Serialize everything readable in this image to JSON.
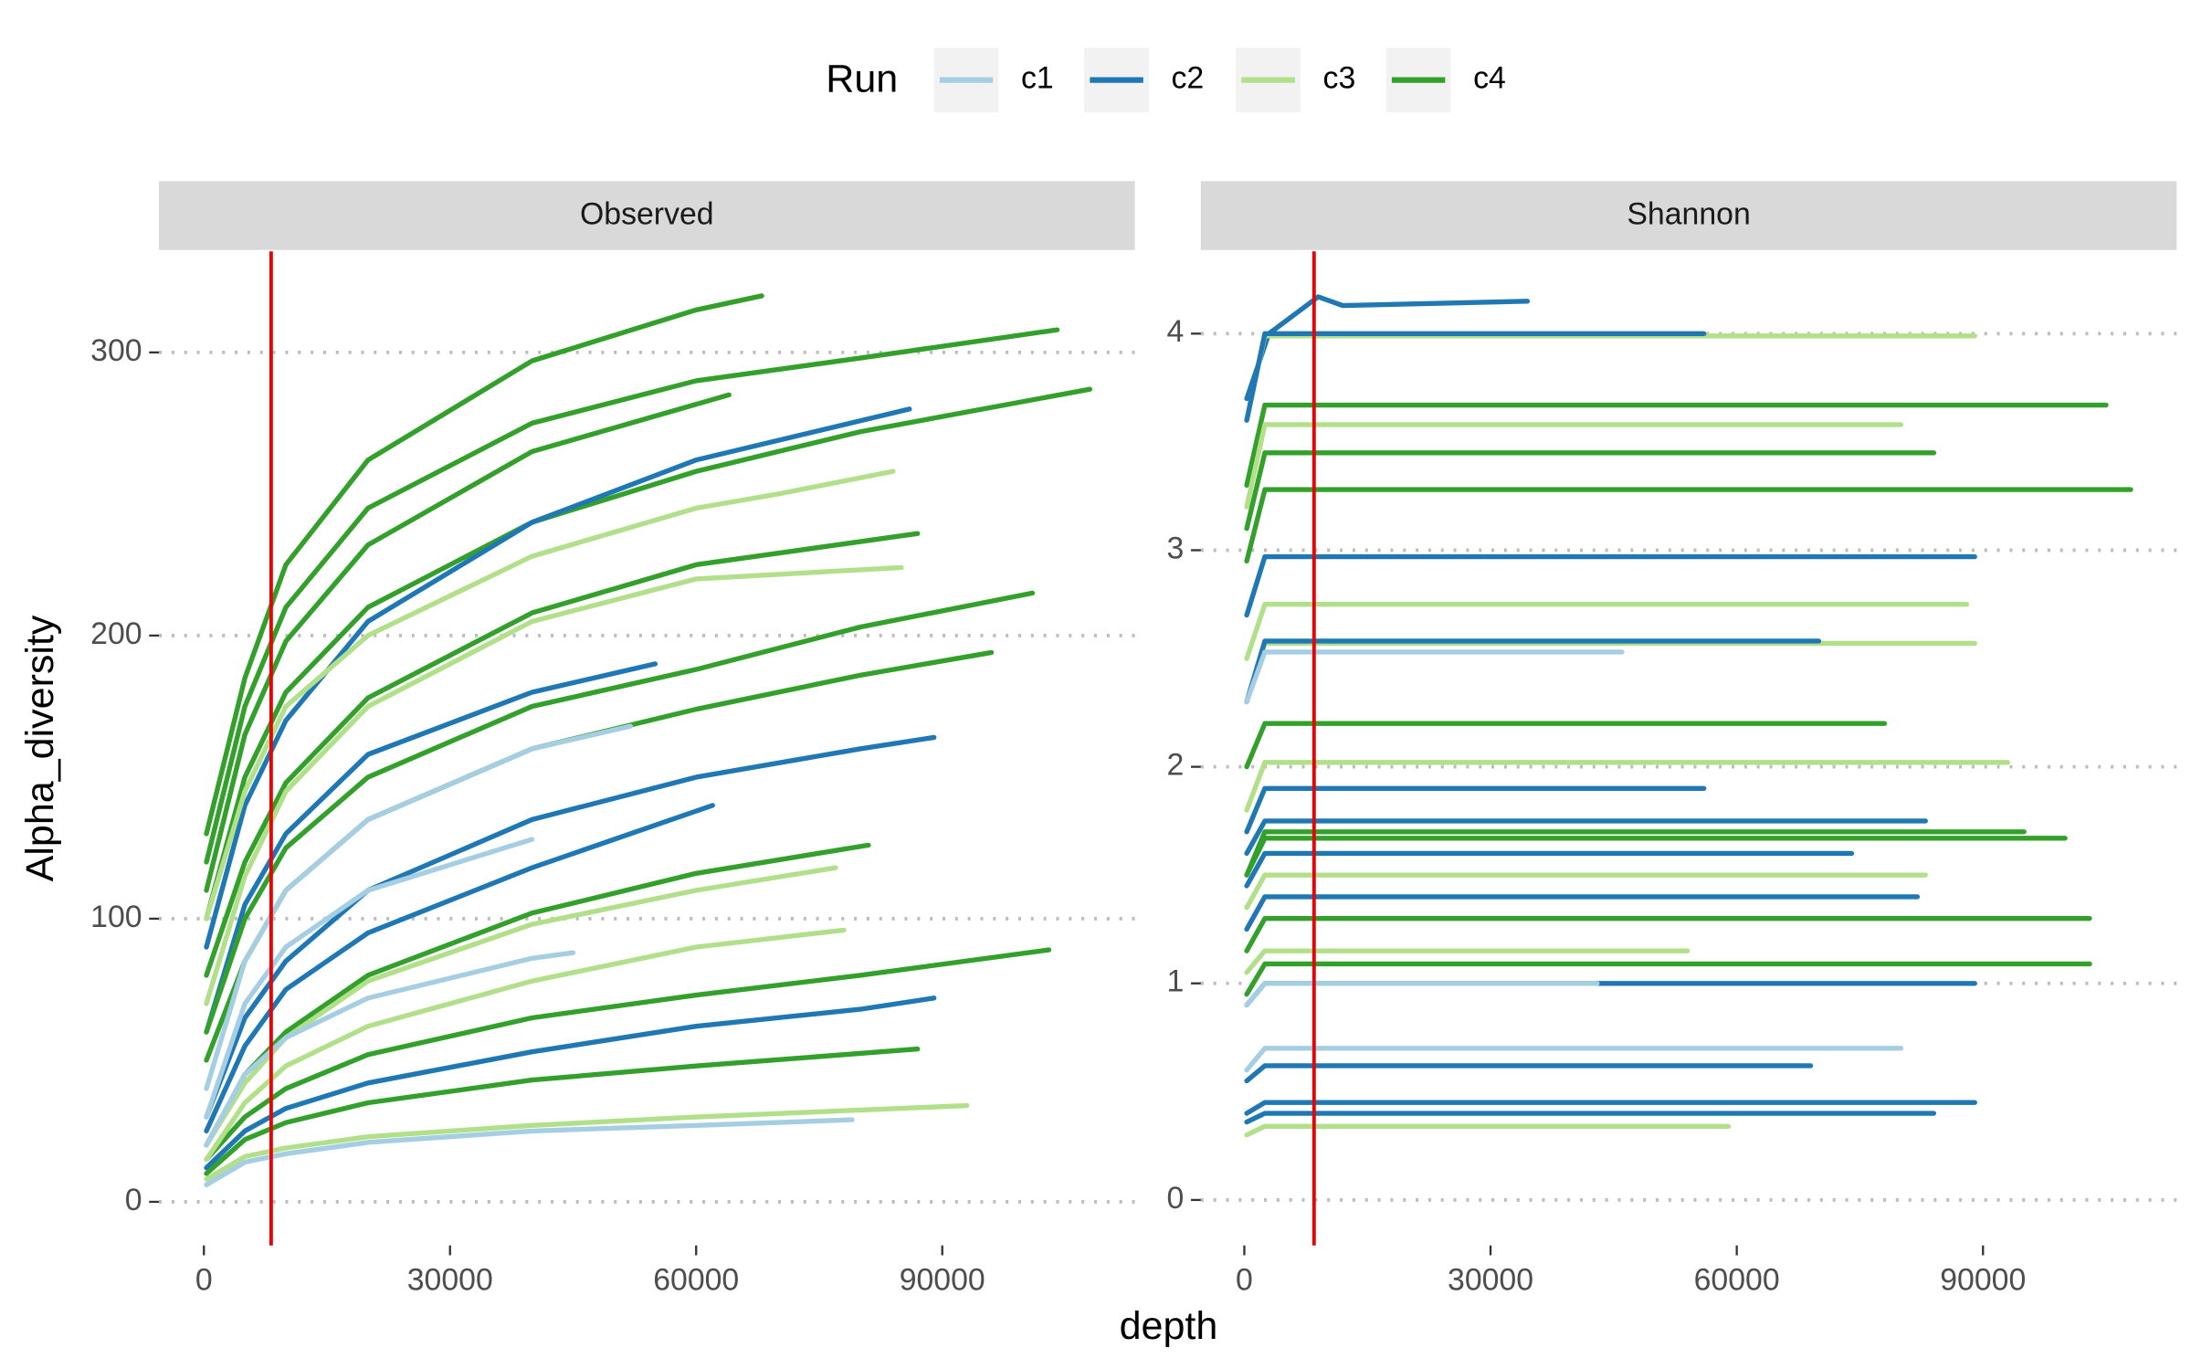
{
  "legend": {
    "title": "Run",
    "items": [
      {
        "name": "c1",
        "color": "#a6cee3"
      },
      {
        "name": "c2",
        "color": "#1f78b4"
      },
      {
        "name": "c3",
        "color": "#b2df8a"
      },
      {
        "name": "c4",
        "color": "#33a02c"
      }
    ]
  },
  "x_label": "depth",
  "y_label": "Alpha_diversity",
  "chart_data": [
    {
      "type": "line",
      "title": "Observed",
      "xlim": [
        -5480,
        113470
      ],
      "ylim": [
        -15.4,
        335.7
      ],
      "xticks": [
        0,
        30000,
        60000,
        90000
      ],
      "yticks": [
        0,
        100,
        200,
        300
      ],
      "grid": true,
      "vline": {
        "x": 8200,
        "color": "#ee0000"
      },
      "series": [
        {
          "name": "c4",
          "color": "#33a02c",
          "x": [
            300,
            5000,
            10000,
            20000,
            40000,
            60000,
            68000
          ],
          "values": [
            130,
            185,
            225,
            262,
            297,
            315,
            320
          ]
        },
        {
          "name": "c4",
          "color": "#33a02c",
          "x": [
            300,
            5000,
            10000,
            20000,
            40000,
            60000,
            80000,
            104000
          ],
          "values": [
            120,
            175,
            210,
            245,
            275,
            290,
            298,
            308
          ]
        },
        {
          "name": "c4",
          "color": "#33a02c",
          "x": [
            300,
            5000,
            10000,
            20000,
            40000,
            60000,
            80000,
            108000
          ],
          "values": [
            100,
            150,
            180,
            210,
            240,
            258,
            272,
            287
          ]
        },
        {
          "name": "c2",
          "color": "#1f78b4",
          "x": [
            300,
            5000,
            10000,
            20000,
            40000,
            60000,
            86000
          ],
          "values": [
            90,
            140,
            170,
            205,
            240,
            262,
            280
          ]
        },
        {
          "name": "c3",
          "color": "#b2df8a",
          "x": [
            300,
            5000,
            10000,
            20000,
            40000,
            60000,
            70000,
            84000
          ],
          "values": [
            100,
            145,
            175,
            200,
            228,
            245,
            250,
            258
          ]
        },
        {
          "name": "c4",
          "color": "#33a02c",
          "x": [
            300,
            5000,
            10000,
            20000,
            40000,
            60000,
            87000
          ],
          "values": [
            80,
            120,
            148,
            178,
            208,
            225,
            236
          ]
        },
        {
          "name": "c3",
          "color": "#b2df8a",
          "x": [
            300,
            5000,
            10000,
            20000,
            40000,
            60000,
            85000
          ],
          "values": [
            70,
            115,
            145,
            175,
            205,
            220,
            224
          ]
        },
        {
          "name": "c2",
          "color": "#1f78b4",
          "x": [
            300,
            5000,
            10000,
            20000,
            40000,
            55000
          ],
          "values": [
            60,
            105,
            130,
            158,
            180,
            190
          ]
        },
        {
          "name": "c4",
          "color": "#33a02c",
          "x": [
            300,
            5000,
            10000,
            20000,
            40000,
            60000,
            80000,
            101000
          ],
          "values": [
            60,
            100,
            125,
            150,
            175,
            188,
            203,
            215
          ]
        },
        {
          "name": "c4",
          "color": "#33a02c",
          "x": [
            300,
            5000,
            10000,
            20000,
            40000,
            60000,
            80000,
            96000
          ],
          "values": [
            50,
            85,
            110,
            135,
            160,
            174,
            186,
            194
          ]
        },
        {
          "name": "c1",
          "color": "#a6cee3",
          "x": [
            300,
            5000,
            10000,
            20000,
            40000,
            52000
          ],
          "values": [
            40,
            85,
            110,
            135,
            160,
            168
          ]
        },
        {
          "name": "c2",
          "color": "#1f78b4",
          "x": [
            300,
            5000,
            10000,
            20000,
            40000,
            60000,
            80000,
            89000
          ],
          "values": [
            30,
            65,
            85,
            110,
            135,
            150,
            160,
            164
          ]
        },
        {
          "name": "c2",
          "color": "#1f78b4",
          "x": [
            300,
            5000,
            10000,
            20000,
            40000,
            62000
          ],
          "values": [
            25,
            55,
            75,
            95,
            118,
            140
          ]
        },
        {
          "name": "c1",
          "color": "#a6cee3",
          "x": [
            300,
            5000,
            10000,
            20000,
            40000
          ],
          "values": [
            30,
            70,
            90,
            110,
            128
          ]
        },
        {
          "name": "c4",
          "color": "#33a02c",
          "x": [
            300,
            5000,
            10000,
            20000,
            40000,
            60000,
            81000
          ],
          "values": [
            20,
            45,
            60,
            80,
            102,
            116,
            126
          ]
        },
        {
          "name": "c3",
          "color": "#b2df8a",
          "x": [
            300,
            5000,
            10000,
            20000,
            40000,
            60000,
            77000
          ],
          "values": [
            20,
            42,
            58,
            78,
            98,
            110,
            118
          ]
        },
        {
          "name": "c4",
          "color": "#33a02c",
          "x": [
            300,
            5000,
            10000,
            20000,
            40000,
            60000,
            80000,
            103000
          ],
          "values": [
            15,
            30,
            40,
            52,
            65,
            73,
            80,
            89
          ]
        },
        {
          "name": "c2",
          "color": "#1f78b4",
          "x": [
            300,
            5000,
            10000,
            20000,
            40000,
            60000,
            80000,
            89000
          ],
          "values": [
            12,
            25,
            33,
            42,
            53,
            62,
            68,
            72
          ]
        },
        {
          "name": "c4",
          "color": "#33a02c",
          "x": [
            300,
            5000,
            10000,
            20000,
            40000,
            60000,
            87000
          ],
          "values": [
            10,
            22,
            28,
            35,
            43,
            48,
            54
          ]
        },
        {
          "name": "c3",
          "color": "#b2df8a",
          "x": [
            300,
            5000,
            10000,
            20000,
            40000,
            60000,
            93000
          ],
          "values": [
            8,
            16,
            19,
            23,
            27,
            30,
            34
          ]
        },
        {
          "name": "c1",
          "color": "#a6cee3",
          "x": [
            300,
            5000,
            10000,
            20000,
            40000,
            60000,
            79000
          ],
          "values": [
            6,
            14,
            17,
            21,
            25,
            27,
            29
          ]
        },
        {
          "name": "c3",
          "color": "#b2df8a",
          "x": [
            300,
            5000,
            10000,
            20000,
            40000,
            60000,
            78000
          ],
          "values": [
            15,
            35,
            48,
            62,
            78,
            90,
            96
          ]
        },
        {
          "name": "c1",
          "color": "#a6cee3",
          "x": [
            300,
            5000,
            10000,
            20000,
            40000,
            45000
          ],
          "values": [
            20,
            45,
            58,
            72,
            86,
            88
          ]
        },
        {
          "name": "c4",
          "color": "#33a02c",
          "x": [
            300,
            5000,
            10000,
            20000,
            40000,
            64000
          ],
          "values": [
            110,
            165,
            198,
            232,
            265,
            285
          ]
        }
      ]
    },
    {
      "type": "line",
      "title": "Shannon",
      "xlim": [
        -5300,
        113600
      ],
      "ylim": [
        -0.21,
        4.38
      ],
      "xticks": [
        0,
        30000,
        60000,
        90000
      ],
      "yticks": [
        0,
        1,
        2,
        3,
        4
      ],
      "grid": true,
      "vline": {
        "x": 8500,
        "color": "#ee0000"
      },
      "series": [
        {
          "name": "c2",
          "color": "#1f78b4",
          "x": [
            300,
            3000,
            9000,
            12000,
            34500
          ],
          "values": [
            3.7,
            4.0,
            4.17,
            4.13,
            4.15
          ]
        },
        {
          "name": "c3",
          "color": "#b2df8a",
          "x": [
            300,
            2500,
            89000
          ],
          "values": [
            3.6,
            3.99,
            3.99
          ]
        },
        {
          "name": "c2",
          "color": "#1f78b4",
          "x": [
            300,
            2500,
            56000
          ],
          "values": [
            3.6,
            4.0,
            4.0
          ]
        },
        {
          "name": "c4",
          "color": "#33a02c",
          "x": [
            300,
            2500,
            105000
          ],
          "values": [
            3.3,
            3.67,
            3.67
          ]
        },
        {
          "name": "c4",
          "color": "#33a02c",
          "x": [
            300,
            2500,
            108000
          ],
          "values": [
            2.95,
            3.28,
            3.28
          ]
        },
        {
          "name": "c3",
          "color": "#b2df8a",
          "x": [
            300,
            2500,
            80000
          ],
          "values": [
            3.2,
            3.58,
            3.58
          ]
        },
        {
          "name": "c2",
          "color": "#1f78b4",
          "x": [
            300,
            2500,
            89000
          ],
          "values": [
            2.7,
            2.97,
            2.97
          ]
        },
        {
          "name": "c4",
          "color": "#33a02c",
          "x": [
            300,
            2500,
            84000
          ],
          "values": [
            3.1,
            3.45,
            3.45
          ]
        },
        {
          "name": "c3",
          "color": "#b2df8a",
          "x": [
            300,
            2500,
            88000
          ],
          "values": [
            2.5,
            2.75,
            2.75
          ]
        },
        {
          "name": "c3",
          "color": "#b2df8a",
          "x": [
            300,
            2500,
            89000
          ],
          "values": [
            2.3,
            2.57,
            2.57
          ]
        },
        {
          "name": "c2",
          "color": "#1f78b4",
          "x": [
            300,
            2500,
            70000
          ],
          "values": [
            2.3,
            2.58,
            2.58
          ]
        },
        {
          "name": "c1",
          "color": "#a6cee3",
          "x": [
            300,
            2500,
            46000
          ],
          "values": [
            2.3,
            2.53,
            2.53
          ]
        },
        {
          "name": "c4",
          "color": "#33a02c",
          "x": [
            300,
            2500,
            78000
          ],
          "values": [
            2.0,
            2.2,
            2.2
          ]
        },
        {
          "name": "c3",
          "color": "#b2df8a",
          "x": [
            300,
            2500,
            93000
          ],
          "values": [
            1.8,
            2.02,
            2.02
          ]
        },
        {
          "name": "c2",
          "color": "#1f78b4",
          "x": [
            300,
            2500,
            56000
          ],
          "values": [
            1.7,
            1.9,
            1.9
          ]
        },
        {
          "name": "c2",
          "color": "#1f78b4",
          "x": [
            300,
            2500,
            83000
          ],
          "values": [
            1.6,
            1.75,
            1.75
          ]
        },
        {
          "name": "c4",
          "color": "#33a02c",
          "x": [
            300,
            2500,
            100000
          ],
          "values": [
            1.5,
            1.67,
            1.67
          ]
        },
        {
          "name": "c4",
          "color": "#33a02c",
          "x": [
            300,
            2500,
            95000
          ],
          "values": [
            1.5,
            1.7,
            1.7
          ]
        },
        {
          "name": "c2",
          "color": "#1f78b4",
          "x": [
            300,
            2500,
            74000
          ],
          "values": [
            1.45,
            1.6,
            1.6
          ]
        },
        {
          "name": "c3",
          "color": "#b2df8a",
          "x": [
            300,
            2500,
            83000
          ],
          "values": [
            1.35,
            1.5,
            1.5
          ]
        },
        {
          "name": "c4",
          "color": "#33a02c",
          "x": [
            300,
            2500,
            103000
          ],
          "values": [
            1.15,
            1.3,
            1.3
          ]
        },
        {
          "name": "c2",
          "color": "#1f78b4",
          "x": [
            300,
            2500,
            82000
          ],
          "values": [
            1.25,
            1.4,
            1.4
          ]
        },
        {
          "name": "c4",
          "color": "#33a02c",
          "x": [
            300,
            2500,
            103000
          ],
          "values": [
            0.95,
            1.09,
            1.09
          ]
        },
        {
          "name": "c2",
          "color": "#1f78b4",
          "x": [
            300,
            2500,
            89000
          ],
          "values": [
            0.9,
            1.0,
            1.0
          ]
        },
        {
          "name": "c1",
          "color": "#a6cee3",
          "x": [
            300,
            2500,
            80000
          ],
          "values": [
            0.6,
            0.7,
            0.7
          ]
        },
        {
          "name": "c2",
          "color": "#1f78b4",
          "x": [
            300,
            2500,
            69000
          ],
          "values": [
            0.55,
            0.62,
            0.62
          ]
        },
        {
          "name": "c2",
          "color": "#1f78b4",
          "x": [
            300,
            2500,
            89000
          ],
          "values": [
            0.4,
            0.45,
            0.45
          ]
        },
        {
          "name": "c2",
          "color": "#1f78b4",
          "x": [
            300,
            2500,
            84000
          ],
          "values": [
            0.36,
            0.4,
            0.4
          ]
        },
        {
          "name": "c3",
          "color": "#b2df8a",
          "x": [
            300,
            2500,
            59000
          ],
          "values": [
            0.3,
            0.34,
            0.34
          ]
        },
        {
          "name": "c1",
          "color": "#a6cee3",
          "x": [
            300,
            2500,
            43000
          ],
          "values": [
            0.9,
            1.0,
            1.0
          ]
        },
        {
          "name": "c3",
          "color": "#b2df8a",
          "x": [
            300,
            2500,
            54000
          ],
          "values": [
            1.05,
            1.15,
            1.15
          ]
        }
      ]
    }
  ]
}
